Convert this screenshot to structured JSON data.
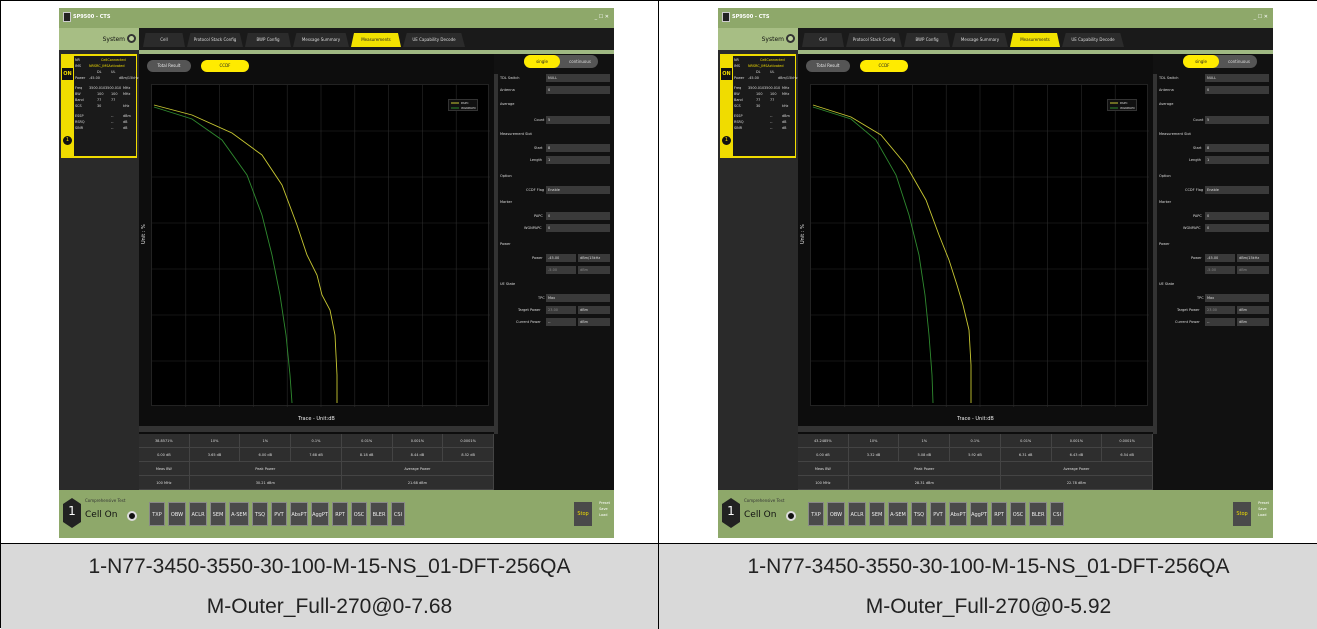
{
  "panels": [
    {
      "caption_line1": "1-N77-3450-3550-30-100-M-15-NS_01-DFT-256QA",
      "caption_line2": "M-Outer_Full-270@0-7.68",
      "app": {
        "title": "SP9500 - CTS",
        "window_controls": "_ ☐ ✕",
        "system_label": "System",
        "tabs": [
          "Cell",
          "Protocol Stack Config",
          "BWP Config",
          "Message Summary",
          "Measurements",
          "UE Capability Decode"
        ],
        "active_tab": "Measurements",
        "cell_info": {
          "on_label": "ON",
          "nr_label": "NR",
          "state": "CellConnected",
          "ims_label": "IMS",
          "ims_state": "NRSRC_IMSActivated",
          "dl": "DL",
          "ul": "UL",
          "power_label": "Power",
          "power_value": "-45.00",
          "power_unit": "dBm/15kHz",
          "freq_label": "Freq",
          "freq_dl": "3500.010",
          "freq_ul": "3500.010",
          "freq_unit": "MHz",
          "bw_label": "BW",
          "bw_dl": "100",
          "bw_ul": "100",
          "bw_unit": "MHz",
          "band_label": "Band",
          "band_dl": "77",
          "band_ul": "77",
          "scs_label": "SCS",
          "scs_value": "30",
          "scs_unit": "kHz",
          "essp_label": "ESSP",
          "essp_value": "--",
          "essp_unit": "dBm",
          "rsrq_label": "RSRQ",
          "rsrq_value": "--",
          "rsrq_unit": "dB",
          "sinr_label": "SINR",
          "sinr_value": "--",
          "sinr_unit": "dB",
          "number": "1"
        },
        "result_buttons": [
          "Total Result",
          "CCDF"
        ],
        "plot": {
          "legend": [
            "PAPC",
            "WGNPAPC"
          ],
          "xlabel": "Trace - Unit:dB",
          "ylabel": "Unit : %"
        },
        "results_table": {
          "row1": [
            "38.8571%",
            "10%",
            "1%",
            "0.1%",
            "0.01%",
            "0.001%",
            "0.0001%"
          ],
          "row2": [
            "0.00 dB",
            "3.65 dB",
            "6.00 dB",
            "7.68 dB",
            "8.18 dB",
            "8.44 dB",
            "8.52 dB"
          ],
          "row3_labels": [
            "Meas BW",
            "Peak Power",
            "Average Power"
          ],
          "row4_values": [
            "100 MHz",
            "30.21 dBm",
            "21.68 dBm"
          ]
        },
        "settings": {
          "toggle_single": "single",
          "toggle_continuous": "continuous",
          "tdl_switch_label": "TDL Switch",
          "tdl_switch_value": "NULL",
          "antenna_label": "Antenna",
          "antenna_value": "0",
          "average_label": "Average",
          "count_label": "Count",
          "count_value": "5",
          "meas_slot_label": "Measurement Slot",
          "start_label": "Start",
          "start_value": "8",
          "length_label": "Length",
          "length_value": "1",
          "option_label": "Option",
          "ccdf_flag_label": "CCDF Flag",
          "ccdf_flag_value": "Enable",
          "marker_label": "Marker",
          "papc_label": "PAPC",
          "papc_value": "0",
          "wgnpapc_label": "WGNPAPC",
          "wgnpapc_value": "0",
          "power_label": "Power",
          "power_field_label": "Power",
          "power_value": "-45.00",
          "power_unit": "dBm/15kHz",
          "power2_value": "-5.00",
          "power2_unit": "dBm",
          "ue_state_label": "UE State",
          "tpc_label": "TPC",
          "tpc_value": "Max",
          "target_power_label": "Target Power",
          "target_power_value": "23.00",
          "target_power_unit": "dBm",
          "current_power_label": "Current Power",
          "current_power_value": "--",
          "current_power_unit": "dBm"
        },
        "bottom": {
          "number": "1",
          "comp_test": "Comprehensive Test",
          "cell_on": "Cell On",
          "buttons": [
            "TXP",
            "OBW",
            "ACLR",
            "SEM",
            "A-SEM",
            "TSQ",
            "PVT",
            "AbsPT",
            "AggPT",
            "RPT",
            "OSC",
            "BLER",
            "CSI"
          ],
          "stop": "Stop",
          "side_actions": [
            "Preset",
            "Save",
            "Load"
          ]
        }
      }
    },
    {
      "caption_line1": "1-N77-3450-3550-30-100-M-15-NS_01-DFT-256QA",
      "caption_line2": "M-Outer_Full-270@0-5.92",
      "app": {
        "title": "SP9500 - CTS",
        "window_controls": "_ ☐ ✕",
        "system_label": "System",
        "tabs": [
          "Cell",
          "Protocol Stack Config",
          "BWP Config",
          "Message Summary",
          "Measurements",
          "UE Capability Decode"
        ],
        "active_tab": "Measurements",
        "cell_info": {
          "on_label": "ON",
          "nr_label": "NR",
          "state": "CellConnected",
          "ims_label": "IMS",
          "ims_state": "NRSRC_IMSActivated",
          "dl": "DL",
          "ul": "UL",
          "power_label": "Power",
          "power_value": "-45.00",
          "power_unit": "dBm/15kHz",
          "freq_label": "Freq",
          "freq_dl": "3500.010",
          "freq_ul": "3500.010",
          "freq_unit": "MHz",
          "bw_label": "BW",
          "bw_dl": "100",
          "bw_ul": "100",
          "bw_unit": "MHz",
          "band_label": "Band",
          "band_dl": "77",
          "band_ul": "77",
          "scs_label": "SCS",
          "scs_value": "30",
          "scs_unit": "kHz",
          "essp_label": "ESSP",
          "essp_value": "--",
          "essp_unit": "dBm",
          "rsrq_label": "RSRQ",
          "rsrq_value": "--",
          "rsrq_unit": "dB",
          "sinr_label": "SINR",
          "sinr_value": "--",
          "sinr_unit": "dB",
          "number": "1"
        },
        "result_buttons": [
          "Total Result",
          "CCDF"
        ],
        "plot": {
          "legend": [
            "PAPC",
            "WGNPAPC"
          ],
          "xlabel": "Trace - Unit:dB",
          "ylabel": "Unit : %"
        },
        "results_table": {
          "row1": [
            "43.2485%",
            "10%",
            "1%",
            "0.1%",
            "0.01%",
            "0.001%",
            "0.0001%"
          ],
          "row2": [
            "0.00 dB",
            "3.32 dB",
            "5.08 dB",
            "5.92 dB",
            "6.31 dB",
            "6.43 dB",
            "6.54 dB"
          ],
          "row3_labels": [
            "Meas BW",
            "Peak Power",
            "Average Power"
          ],
          "row4_values": [
            "100 MHz",
            "28.31 dBm",
            "22.78 dBm"
          ]
        },
        "settings": {
          "toggle_single": "single",
          "toggle_continuous": "continuous",
          "tdl_switch_label": "TDL Switch",
          "tdl_switch_value": "NULL",
          "antenna_label": "Antenna",
          "antenna_value": "0",
          "average_label": "Average",
          "count_label": "Count",
          "count_value": "5",
          "meas_slot_label": "Measurement Slot",
          "start_label": "Start",
          "start_value": "8",
          "length_label": "Length",
          "length_value": "1",
          "option_label": "Option",
          "ccdf_flag_label": "CCDF Flag",
          "ccdf_flag_value": "Enable",
          "marker_label": "Marker",
          "papc_label": "PAPC",
          "papc_value": "0",
          "wgnpapc_label": "WGNPAPC",
          "wgnpapc_value": "0",
          "power_label": "Power",
          "power_field_label": "Power",
          "power_value": "-45.00",
          "power_unit": "dBm/15kHz",
          "power2_value": "-5.00",
          "power2_unit": "dBm",
          "ue_state_label": "UE State",
          "tpc_label": "TPC",
          "tpc_value": "Max",
          "target_power_label": "Target Power",
          "target_power_value": "23.00",
          "target_power_unit": "dBm",
          "current_power_label": "Current Power",
          "current_power_value": "--",
          "current_power_unit": "dBm"
        },
        "bottom": {
          "number": "1",
          "comp_test": "Comprehensive Test",
          "cell_on": "Cell On",
          "buttons": [
            "TXP",
            "OBW",
            "ACLR",
            "SEM",
            "A-SEM",
            "TSQ",
            "PVT",
            "AbsPT",
            "AggPT",
            "RPT",
            "OSC",
            "BLER",
            "CSI"
          ],
          "stop": "Stop",
          "side_actions": [
            "Preset",
            "Save",
            "Load"
          ]
        }
      }
    }
  ],
  "colors": {
    "accent_yellow": "#ffeb00",
    "titlebar_green": "#8ea86a",
    "caption_gray": "#d9d9d9",
    "curve_papc": "#c8c832",
    "curve_wgn": "#2f8a2f"
  }
}
